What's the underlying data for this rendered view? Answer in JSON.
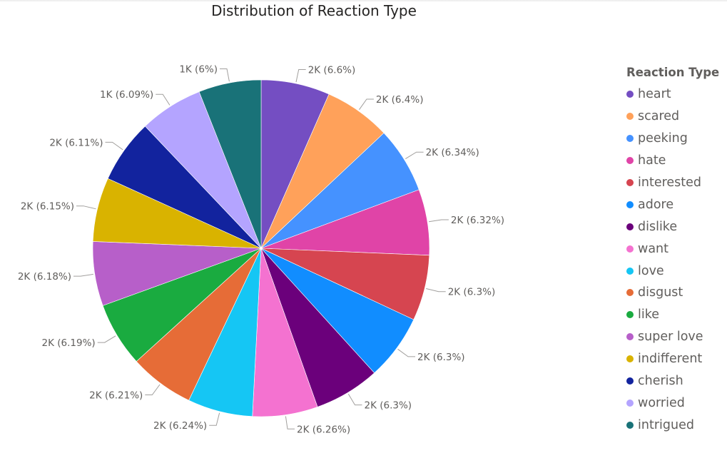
{
  "chart_data": {
    "type": "pie",
    "title": "Distribution of Reaction Type",
    "legend": {
      "title": "Reaction Type",
      "position": "right"
    },
    "slices": [
      {
        "name": "heart",
        "value": 6.6,
        "label": "2K (6.6%)",
        "color": "#744ec2"
      },
      {
        "name": "scared",
        "value": 6.4,
        "label": "2K (6.4%)",
        "color": "#ffa15a"
      },
      {
        "name": "peeking",
        "value": 6.34,
        "label": "2K (6.34%)",
        "color": "#4592ff"
      },
      {
        "name": "hate",
        "value": 6.32,
        "label": "2K (6.32%)",
        "color": "#e044a7"
      },
      {
        "name": "interested",
        "value": 6.3,
        "label": "2K (6.3%)",
        "color": "#d64550"
      },
      {
        "name": "adore",
        "value": 6.3,
        "label": "2K (6.3%)",
        "color": "#118dff"
      },
      {
        "name": "dislike",
        "value": 6.3,
        "label": "2K (6.3%)",
        "color": "#6b007b"
      },
      {
        "name": "want",
        "value": 6.26,
        "label": "2K (6.26%)",
        "color": "#f472d0"
      },
      {
        "name": "love",
        "value": 6.24,
        "label": "2K (6.24%)",
        "color": "#15c6f4"
      },
      {
        "name": "disgust",
        "value": 6.21,
        "label": "2K (6.21%)",
        "color": "#e66c37"
      },
      {
        "name": "like",
        "value": 6.19,
        "label": "2K (6.19%)",
        "color": "#1aab40"
      },
      {
        "name": "super love",
        "value": 6.18,
        "label": "2K (6.18%)",
        "color": "#b75fc9"
      },
      {
        "name": "indifferent",
        "value": 6.15,
        "label": "2K (6.15%)",
        "color": "#d9b300"
      },
      {
        "name": "cherish",
        "value": 6.11,
        "label": "2K (6.11%)",
        "color": "#12239e"
      },
      {
        "name": "worried",
        "value": 6.09,
        "label": "1K (6.09%)",
        "color": "#b4a4ff"
      },
      {
        "name": "intrigued",
        "value": 6.0,
        "label": "1K (6%)",
        "color": "#197278"
      }
    ]
  }
}
